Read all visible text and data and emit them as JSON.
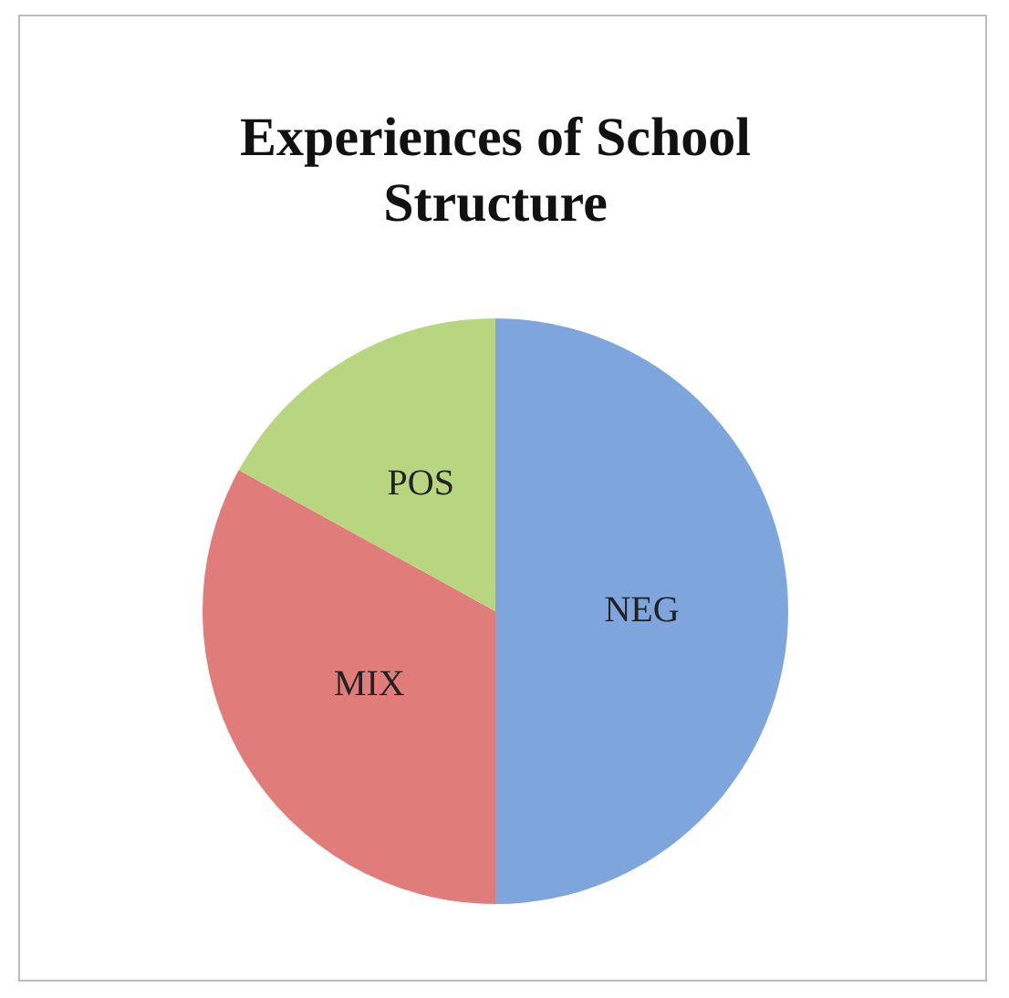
{
  "chart_data": {
    "type": "pie",
    "title": "Experiences of School Structure",
    "categories": [
      "NEG",
      "MIX",
      "POS"
    ],
    "values": [
      50,
      33,
      17
    ],
    "colors": [
      "#7fa6dc",
      "#e07c7a",
      "#b7d67f"
    ],
    "legend": false
  }
}
